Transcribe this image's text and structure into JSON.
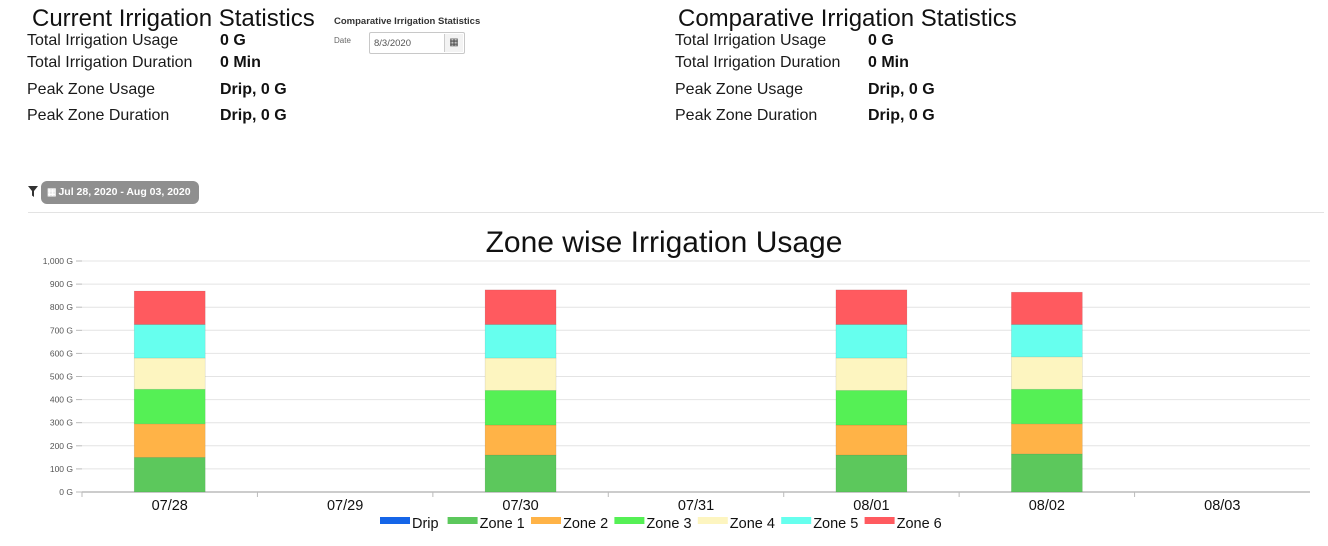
{
  "current": {
    "title": "Current Irrigation Statistics",
    "rows": [
      {
        "label": "Total Irrigation Usage",
        "value": "0 G"
      },
      {
        "label": "Total Irrigation Duration",
        "value": "0 Min"
      },
      {
        "label": "Peak Zone Usage",
        "value": "Drip, 0 G"
      },
      {
        "label": "Peak Zone Duration",
        "value": "Drip, 0 G"
      }
    ]
  },
  "picker": {
    "title": "Comparative Irrigation Statistics",
    "date_label": "Date",
    "date_value": "8/3/2020"
  },
  "comparative": {
    "title": "Comparative Irrigation Statistics",
    "rows": [
      {
        "label": "Total Irrigation Usage",
        "value": "0 G"
      },
      {
        "label": "Total Irrigation Duration",
        "value": "0 Min"
      },
      {
        "label": "Peak Zone Usage",
        "value": "Drip, 0 G"
      },
      {
        "label": "Peak Zone Duration",
        "value": "Drip, 0 G"
      }
    ]
  },
  "filter": {
    "icon": "filter-icon",
    "calendar_icon": "calendar-icon",
    "range_label": "Jul 28, 2020 - Aug 03, 2020"
  },
  "chart_data": {
    "type": "bar",
    "stacked": true,
    "title": "Zone wise Irrigation Usage",
    "xlabel": "",
    "ylabel": "",
    "categories": [
      "07/28",
      "07/29",
      "07/30",
      "07/31",
      "08/01",
      "08/02",
      "08/03"
    ],
    "ylim": [
      0,
      1000
    ],
    "yticks": [
      0,
      100,
      200,
      300,
      400,
      500,
      600,
      700,
      800,
      900,
      1000
    ],
    "ytick_labels": [
      "0 G",
      "100 G",
      "200 G",
      "300 G",
      "400 G",
      "500 G",
      "600 G",
      "700 G",
      "800 G",
      "900 G",
      "1,000 G"
    ],
    "grid": true,
    "legend": "bottom",
    "series": [
      {
        "name": "Drip",
        "color": "#1565e8",
        "values": [
          0,
          0,
          0,
          0,
          0,
          0,
          0
        ]
      },
      {
        "name": "Zone 1",
        "color": "#5cc85c",
        "values": [
          150,
          0,
          160,
          0,
          160,
          165,
          0
        ]
      },
      {
        "name": "Zone 2",
        "color": "#ffb347",
        "values": [
          145,
          0,
          130,
          0,
          130,
          130,
          0
        ]
      },
      {
        "name": "Zone 3",
        "color": "#55f055",
        "values": [
          150,
          0,
          150,
          0,
          150,
          150,
          0
        ]
      },
      {
        "name": "Zone 4",
        "color": "#fdf5c0",
        "values": [
          135,
          0,
          140,
          0,
          140,
          140,
          0
        ]
      },
      {
        "name": "Zone 5",
        "color": "#66ffee",
        "values": [
          145,
          0,
          145,
          0,
          145,
          140,
          0
        ]
      },
      {
        "name": "Zone 6",
        "color": "#ff5a5f",
        "values": [
          145,
          0,
          150,
          0,
          150,
          140,
          0
        ]
      }
    ]
  }
}
